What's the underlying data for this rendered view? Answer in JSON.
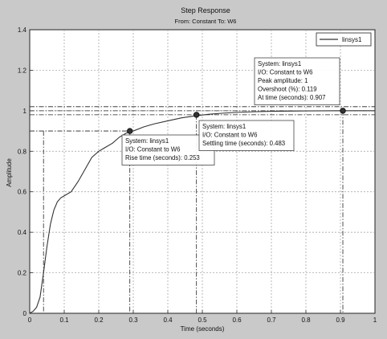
{
  "chart_data": {
    "type": "line",
    "title": "Step Response",
    "subtitle": "From: Constant  To: W6",
    "xlabel": "Time (seconds)",
    "ylabel": "Amplitude",
    "xlim": [
      0,
      1
    ],
    "ylim": [
      0,
      1.4
    ],
    "xticks": [
      "0",
      "0.1",
      "0.2",
      "0.3",
      "0.4",
      "0.5",
      "0.6",
      "0.7",
      "0.8",
      "0.9",
      "1"
    ],
    "yticks": [
      "0",
      "0.2",
      "0.4",
      "0.6",
      "0.8",
      "1",
      "1.2",
      "1.4"
    ],
    "grid": true,
    "legend_position": "top-right",
    "series": [
      {
        "name": "linsys1",
        "x": [
          0,
          0.01,
          0.02,
          0.03,
          0.04,
          0.05,
          0.06,
          0.07,
          0.08,
          0.09,
          0.1,
          0.12,
          0.14,
          0.16,
          0.18,
          0.2,
          0.22,
          0.24,
          0.26,
          0.28,
          0.3,
          0.33,
          0.36,
          0.4,
          0.44,
          0.48,
          0.52,
          0.56,
          0.6,
          0.65,
          0.7,
          0.75,
          0.8,
          0.85,
          0.9,
          0.95,
          1.0
        ],
        "y": [
          0,
          0.01,
          0.03,
          0.08,
          0.2,
          0.33,
          0.44,
          0.51,
          0.55,
          0.57,
          0.58,
          0.6,
          0.65,
          0.71,
          0.77,
          0.8,
          0.82,
          0.84,
          0.87,
          0.89,
          0.9,
          0.92,
          0.935,
          0.95,
          0.965,
          0.975,
          0.983,
          0.988,
          0.992,
          0.995,
          0.997,
          0.998,
          0.999,
          0.9995,
          1.0,
          1.0,
          1.0
        ]
      }
    ],
    "reference_lines": {
      "steady_state": 1.0,
      "settling_band": [
        0.98,
        1.02
      ],
      "rise_band": [
        0.1,
        0.9
      ]
    },
    "annotations": [
      {
        "kind": "rise-time",
        "point": [
          0.29,
          0.9
        ],
        "rise_start": 0.04,
        "lines": [
          "System: linsys1",
          "I/O: Constant to W6",
          "Rise time (seconds): 0.253"
        ]
      },
      {
        "kind": "settling-time",
        "point": [
          0.483,
          0.98
        ],
        "lines": [
          "System: linsys1",
          "I/O: Constant to W6",
          "Settling time (seconds): 0.483"
        ]
      },
      {
        "kind": "peak",
        "point": [
          0.907,
          1.0
        ],
        "lines": [
          "System: linsys1",
          "I/O: Constant to W6",
          "Peak amplitude: 1",
          "Overshoot (%): 0.119",
          "At time (seconds): 0.907"
        ]
      }
    ],
    "colors": {
      "figure_bg": "#c9c9c9",
      "axes_bg": "#ffffff",
      "line": "#333333",
      "grid": "#9a9a9a"
    }
  }
}
